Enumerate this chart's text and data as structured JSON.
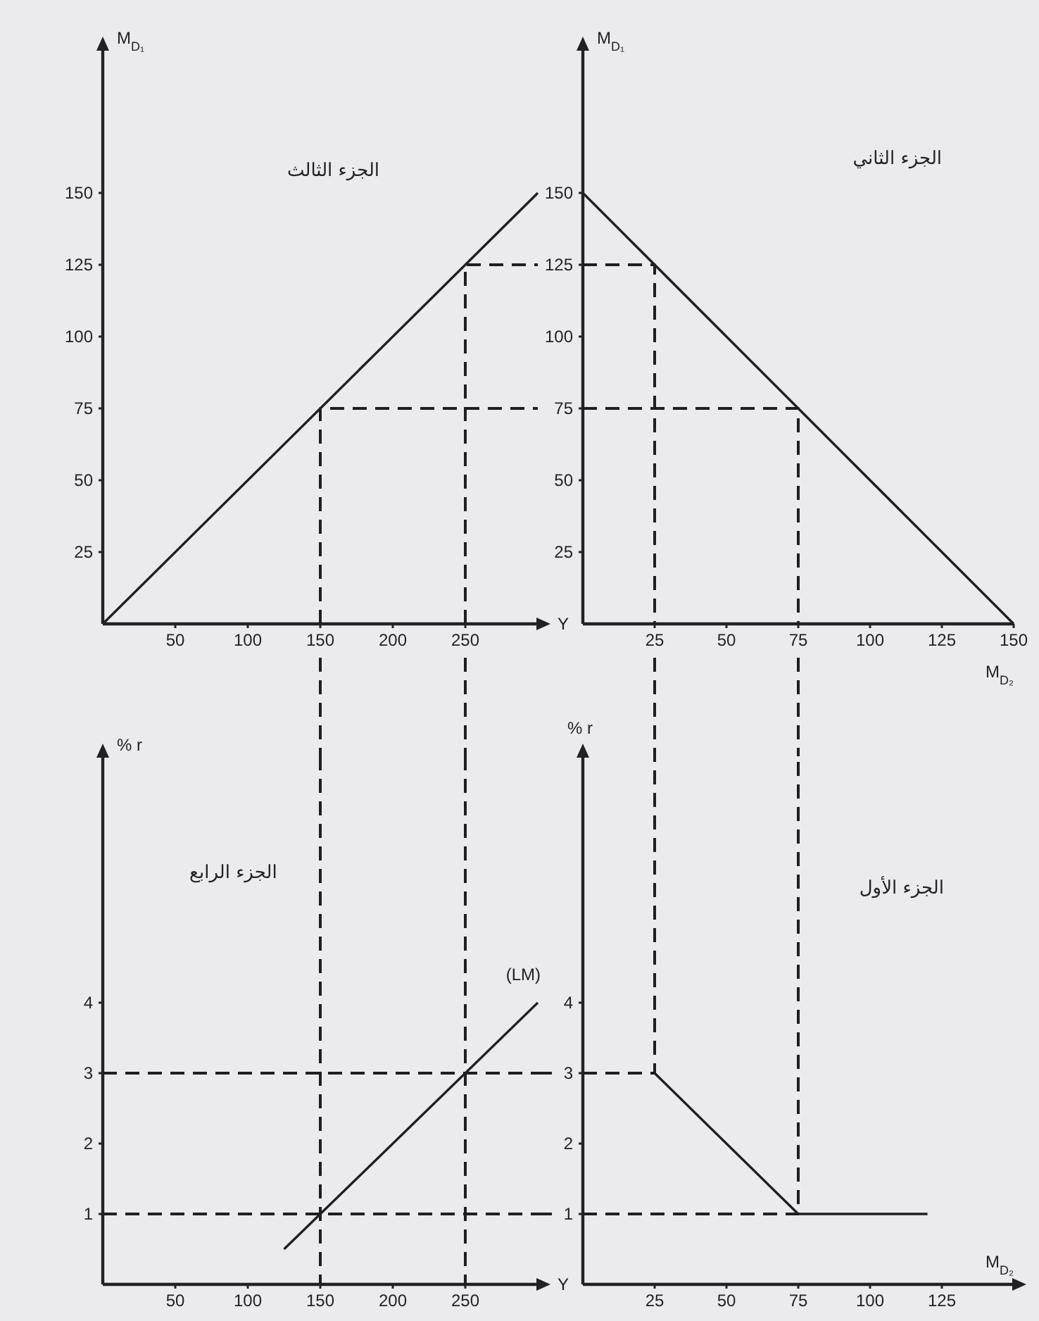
{
  "chart_data": [
    {
      "type": "line",
      "title": "الجزء الثالث",
      "xlabel": "Y",
      "ylabel": "M$_{D₁}$",
      "line_style": "solid",
      "xlim": [
        0,
        300
      ],
      "xticks": [
        50,
        100,
        150,
        200,
        250
      ],
      "ylim": [
        0,
        200
      ],
      "yticks": [
        25,
        50,
        75,
        100,
        125,
        150
      ],
      "series": [
        {
          "color": "#1f1f1f",
          "x": [
            0,
            300
          ],
          "values": [
            0,
            150
          ]
        },
        {
          "color": "#1f1f1f",
          "line_style": "dashed",
          "x": [
            150,
            150,
            300
          ],
          "values": [
            0,
            75,
            75
          ]
        },
        {
          "color": "#1f1f1f",
          "line_style": "dashed",
          "x": [
            250,
            250,
            300
          ],
          "values": [
            0,
            125,
            125
          ]
        }
      ]
    },
    {
      "type": "line",
      "title": "الجزء الثاني",
      "xlabel": "M$_{D₂}$",
      "ylabel": "M$_{D₁}$",
      "line_style": "solid",
      "xlim": [
        0,
        150
      ],
      "xticks": [
        25,
        50,
        75,
        100,
        125,
        150
      ],
      "ylim": [
        0,
        200
      ],
      "yticks": [
        25,
        50,
        75,
        100,
        125,
        150
      ],
      "series": [
        {
          "color": "#1f1f1f",
          "x": [
            0,
            150
          ],
          "values": [
            150,
            0
          ]
        },
        {
          "color": "#1f1f1f",
          "line_style": "dashed",
          "x": [
            0,
            25,
            25
          ],
          "values": [
            125,
            125,
            0
          ]
        },
        {
          "color": "#1f1f1f",
          "line_style": "dashed",
          "x": [
            0,
            75,
            75
          ],
          "values": [
            75,
            75,
            0
          ]
        }
      ]
    },
    {
      "type": "line",
      "title": "الجزء الرابع",
      "xlabel": "Y",
      "ylabel": "% r",
      "line_style": "solid",
      "xlim": [
        0,
        300
      ],
      "xticks": [
        50,
        100,
        150,
        200,
        250
      ],
      "ylim": [
        0,
        7.5
      ],
      "yticks": [
        1,
        2,
        3,
        4
      ],
      "series": [
        {
          "name": "(LM)",
          "color": "#1f1f1f",
          "x": [
            125,
            300
          ],
          "values": [
            0.5,
            4
          ]
        },
        {
          "color": "#1f1f1f",
          "line_style": "dashed",
          "x": [
            150,
            150
          ],
          "values": [
            7.5,
            0
          ]
        },
        {
          "color": "#1f1f1f",
          "line_style": "dashed",
          "x": [
            250,
            250
          ],
          "values": [
            7.5,
            0
          ]
        },
        {
          "color": "#1f1f1f",
          "line_style": "dashed",
          "x": [
            0,
            300
          ],
          "values": [
            3,
            3
          ]
        },
        {
          "color": "#1f1f1f",
          "line_style": "dashed",
          "x": [
            0,
            300
          ],
          "values": [
            1,
            1
          ]
        }
      ]
    },
    {
      "type": "line",
      "title": "الجزء الأول",
      "xlabel": "M$_{D₂}$",
      "ylabel": "% r",
      "line_style": "solid",
      "xlim": [
        0,
        150
      ],
      "xticks": [
        25,
        50,
        75,
        100,
        125
      ],
      "ylim": [
        0,
        7.5
      ],
      "yticks": [
        1,
        2,
        3,
        4
      ],
      "series": [
        {
          "color": "#1f1f1f",
          "x": [
            25,
            75,
            120
          ],
          "values": [
            3,
            1,
            1
          ]
        },
        {
          "color": "#1f1f1f",
          "line_style": "dashed",
          "x": [
            0,
            25,
            25
          ],
          "values": [
            3,
            3,
            7.5
          ]
        },
        {
          "color": "#1f1f1f",
          "line_style": "dashed",
          "x": [
            0,
            75,
            75
          ],
          "values": [
            1,
            1,
            7.5
          ]
        }
      ]
    }
  ]
}
